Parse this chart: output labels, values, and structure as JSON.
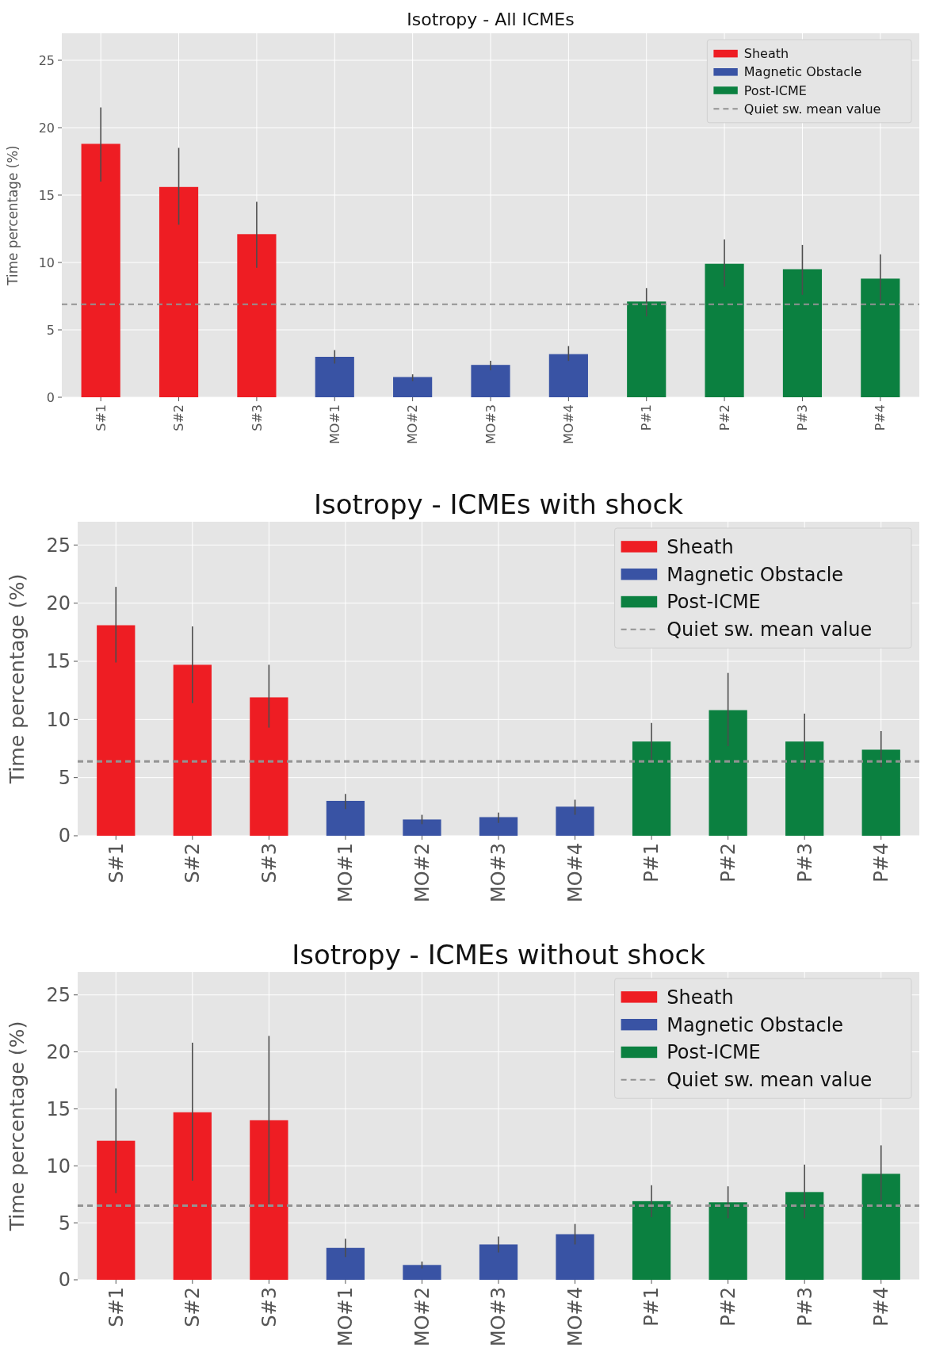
{
  "chart_data": [
    {
      "type": "bar",
      "title": "Isotropy - All ICMEs",
      "ylabel": "Time percentage (%)",
      "categories": [
        "S#1",
        "S#2",
        "S#3",
        "MO#1",
        "MO#2",
        "MO#3",
        "MO#4",
        "P#1",
        "P#2",
        "P#3",
        "P#4"
      ],
      "ylim": [
        0,
        27
      ],
      "yticks": [
        0,
        5,
        10,
        15,
        20,
        25
      ],
      "grid": true,
      "legend": "top right",
      "series": [
        {
          "name": "Sheath",
          "color": "#ee1d23",
          "values": [
            18.8,
            15.6,
            12.1,
            null,
            null,
            null,
            null,
            null,
            null,
            null,
            null
          ],
          "errors": [
            [
              16.0,
              21.5
            ],
            [
              12.8,
              18.5
            ],
            [
              9.6,
              14.5
            ],
            null,
            null,
            null,
            null,
            null,
            null,
            null,
            null
          ]
        },
        {
          "name": "Magnetic Obstacle",
          "color": "#3953a4",
          "values": [
            null,
            null,
            null,
            3.0,
            1.5,
            2.4,
            3.2,
            null,
            null,
            null,
            null
          ],
          "errors": [
            null,
            null,
            null,
            [
              2.5,
              3.5
            ],
            [
              1.2,
              1.7
            ],
            [
              2.0,
              2.7
            ],
            [
              2.7,
              3.8
            ],
            null,
            null,
            null,
            null
          ]
        },
        {
          "name": "Post-ICME",
          "color": "#0b8040",
          "values": [
            null,
            null,
            null,
            null,
            null,
            null,
            null,
            7.1,
            9.9,
            9.5,
            8.8
          ],
          "errors": [
            null,
            null,
            null,
            null,
            null,
            null,
            null,
            [
              6.0,
              8.1
            ],
            [
              8.2,
              11.7
            ],
            [
              7.6,
              11.3
            ],
            [
              7.1,
              10.6
            ]
          ]
        }
      ],
      "ref_lines": [
        {
          "axis": "y",
          "value": 6.9,
          "label": "Quiet sw. mean value",
          "color": "#939393",
          "line_style": "dashed"
        }
      ]
    },
    {
      "type": "bar",
      "title": "Isotropy - ICMEs with shock",
      "ylabel": "Time percentage (%)",
      "categories": [
        "S#1",
        "S#2",
        "S#3",
        "MO#1",
        "MO#2",
        "MO#3",
        "MO#4",
        "P#1",
        "P#2",
        "P#3",
        "P#4"
      ],
      "ylim": [
        0,
        27
      ],
      "yticks": [
        0,
        5,
        10,
        15,
        20,
        25
      ],
      "grid": true,
      "legend": "top right",
      "series": [
        {
          "name": "Sheath",
          "color": "#ee1d23",
          "values": [
            18.1,
            14.7,
            11.9,
            null,
            null,
            null,
            null,
            null,
            null,
            null,
            null
          ],
          "errors": [
            [
              14.9,
              21.4
            ],
            [
              11.4,
              18.0
            ],
            [
              9.3,
              14.7
            ],
            null,
            null,
            null,
            null,
            null,
            null,
            null,
            null
          ]
        },
        {
          "name": "Magnetic Obstacle",
          "color": "#3953a4",
          "values": [
            null,
            null,
            null,
            3.0,
            1.4,
            1.6,
            2.5,
            null,
            null,
            null,
            null
          ],
          "errors": [
            null,
            null,
            null,
            [
              2.3,
              3.6
            ],
            [
              1.0,
              1.8
            ],
            [
              1.1,
              2.0
            ],
            [
              1.8,
              3.1
            ],
            null,
            null,
            null,
            null
          ]
        },
        {
          "name": "Post-ICME",
          "color": "#0b8040",
          "values": [
            null,
            null,
            null,
            null,
            null,
            null,
            null,
            8.1,
            10.8,
            8.1,
            7.4
          ],
          "errors": [
            null,
            null,
            null,
            null,
            null,
            null,
            null,
            [
              6.4,
              9.7
            ],
            [
              7.7,
              14.0
            ],
            [
              5.7,
              10.5
            ],
            [
              5.9,
              9.0
            ]
          ]
        }
      ],
      "ref_lines": [
        {
          "axis": "y",
          "value": 6.4,
          "label": "Quiet sw. mean value",
          "color": "#939393",
          "line_style": "dashed"
        }
      ]
    },
    {
      "type": "bar",
      "title": "Isotropy - ICMEs without shock",
      "ylabel": "Time percentage (%)",
      "categories": [
        "S#1",
        "S#2",
        "S#3",
        "MO#1",
        "MO#2",
        "MO#3",
        "MO#4",
        "P#1",
        "P#2",
        "P#3",
        "P#4"
      ],
      "ylim": [
        0,
        27
      ],
      "yticks": [
        0,
        5,
        10,
        15,
        20,
        25
      ],
      "grid": true,
      "legend": "top right",
      "series": [
        {
          "name": "Sheath",
          "color": "#ee1d23",
          "values": [
            12.2,
            14.7,
            14.0,
            null,
            null,
            null,
            null,
            null,
            null,
            null,
            null
          ],
          "errors": [
            [
              7.6,
              16.8
            ],
            [
              8.7,
              20.8
            ],
            [
              6.6,
              21.4
            ],
            null,
            null,
            null,
            null,
            null,
            null,
            null,
            null
          ]
        },
        {
          "name": "Magnetic Obstacle",
          "color": "#3953a4",
          "values": [
            null,
            null,
            null,
            2.8,
            1.3,
            3.1,
            4.0,
            null,
            null,
            null,
            null
          ],
          "errors": [
            null,
            null,
            null,
            [
              2.0,
              3.6
            ],
            [
              1.0,
              1.6
            ],
            [
              2.4,
              3.8
            ],
            [
              3.1,
              4.9
            ],
            null,
            null,
            null,
            null
          ]
        },
        {
          "name": "Post-ICME",
          "color": "#0b8040",
          "values": [
            null,
            null,
            null,
            null,
            null,
            null,
            null,
            6.9,
            6.8,
            7.7,
            9.3
          ],
          "errors": [
            null,
            null,
            null,
            null,
            null,
            null,
            null,
            [
              5.5,
              8.3
            ],
            [
              5.4,
              8.2
            ],
            [
              5.4,
              10.1
            ],
            [
              6.9,
              11.8
            ]
          ]
        }
      ],
      "ref_lines": [
        {
          "axis": "y",
          "value": 6.5,
          "label": "Quiet sw. mean value",
          "color": "#939393",
          "line_style": "dashed"
        }
      ]
    }
  ]
}
